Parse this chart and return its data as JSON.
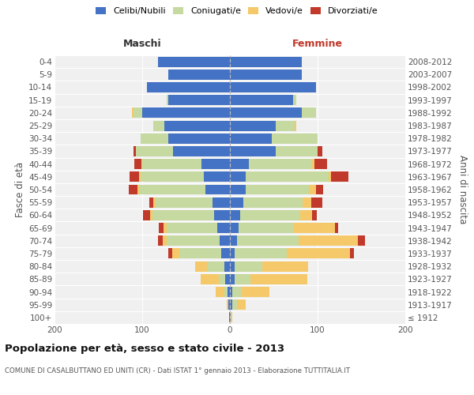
{
  "age_groups": [
    "100+",
    "95-99",
    "90-94",
    "85-89",
    "80-84",
    "75-79",
    "70-74",
    "65-69",
    "60-64",
    "55-59",
    "50-54",
    "45-49",
    "40-44",
    "35-39",
    "30-34",
    "25-29",
    "20-24",
    "15-19",
    "10-14",
    "5-9",
    "0-4"
  ],
  "birth_years": [
    "≤ 1912",
    "1913-1917",
    "1918-1922",
    "1923-1927",
    "1928-1932",
    "1933-1937",
    "1938-1942",
    "1943-1947",
    "1948-1952",
    "1953-1957",
    "1958-1962",
    "1963-1967",
    "1968-1972",
    "1973-1977",
    "1978-1982",
    "1983-1987",
    "1988-1992",
    "1993-1997",
    "1998-2002",
    "2003-2007",
    "2008-2012"
  ],
  "colors": {
    "celibi": "#4472c4",
    "coniugati": "#c5d9a0",
    "vedovi": "#f5c96a",
    "divorziati": "#c0392b"
  },
  "maschi": {
    "celibi": [
      1,
      2,
      3,
      5,
      6,
      10,
      12,
      14,
      18,
      20,
      28,
      30,
      32,
      65,
      70,
      75,
      100,
      70,
      95,
      70,
      82
    ],
    "coniugati": [
      0,
      0,
      3,
      8,
      20,
      48,
      60,
      58,
      70,
      65,
      75,
      72,
      68,
      42,
      32,
      12,
      10,
      2,
      0,
      0,
      0
    ],
    "vedovi": [
      0,
      2,
      10,
      20,
      14,
      8,
      5,
      4,
      3,
      2,
      2,
      2,
      1,
      0,
      0,
      0,
      2,
      0,
      0,
      0,
      0
    ],
    "divorziati": [
      0,
      0,
      0,
      0,
      0,
      4,
      5,
      5,
      8,
      5,
      10,
      10,
      8,
      3,
      0,
      0,
      0,
      0,
      0,
      0,
      0
    ]
  },
  "femmine": {
    "celibi": [
      1,
      3,
      3,
      5,
      5,
      5,
      8,
      10,
      12,
      15,
      18,
      18,
      22,
      52,
      48,
      52,
      82,
      72,
      98,
      82,
      82
    ],
    "coniugati": [
      0,
      5,
      10,
      18,
      32,
      60,
      70,
      62,
      68,
      68,
      72,
      95,
      72,
      48,
      52,
      22,
      16,
      4,
      0,
      0,
      0
    ],
    "vedovi": [
      2,
      10,
      32,
      65,
      52,
      72,
      68,
      48,
      14,
      10,
      8,
      2,
      2,
      0,
      0,
      2,
      0,
      0,
      0,
      0,
      0
    ],
    "divorziati": [
      0,
      0,
      0,
      0,
      0,
      4,
      8,
      3,
      5,
      12,
      8,
      20,
      15,
      5,
      0,
      0,
      0,
      0,
      0,
      0,
      0
    ]
  },
  "title": "Popolazione per età, sesso e stato civile - 2013",
  "subtitle": "COMUNE DI CASALBUTTANO ED UNITI (CR) - Dati ISTAT 1° gennaio 2013 - Elaborazione TUTTITALIA.IT",
  "ylabel": "Fasce di età",
  "ylabel_right": "Anni di nascita",
  "xlabel_left": "Maschi",
  "xlabel_right": "Femmine",
  "legend_labels": [
    "Celibi/Nubili",
    "Coniugati/e",
    "Vedovi/e",
    "Divorziati/e"
  ],
  "xlim": 200,
  "bg_color": "#f0f0f0",
  "fig_bg": "#ffffff"
}
